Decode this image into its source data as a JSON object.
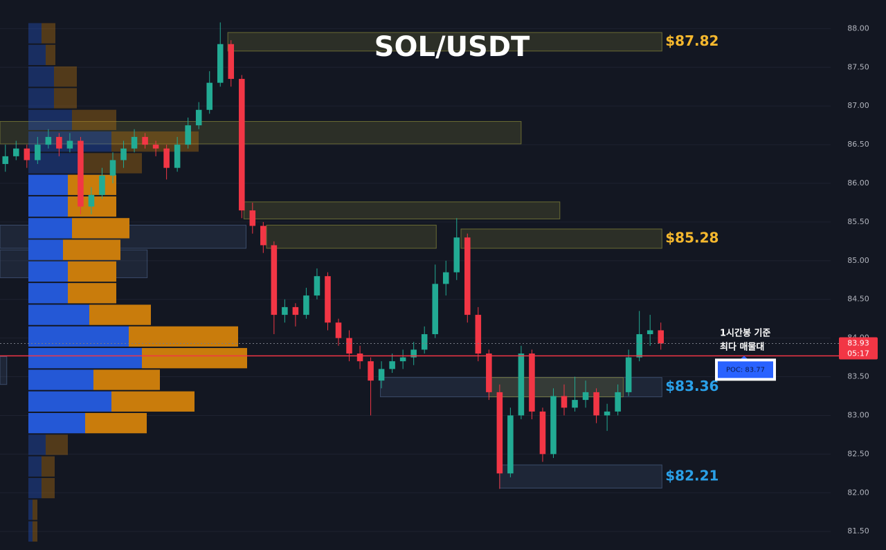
{
  "chart_data": {
    "type": "candlestick",
    "title": "SOL/USDT",
    "up_color": "#22ab94",
    "down_color": "#f23645",
    "ylim": [
      81.26,
      88.37
    ],
    "xlim": [
      -0.5,
      76.8
    ],
    "yticks": [
      {
        "value": 81.5,
        "label": "81.50"
      },
      {
        "value": 82,
        "label": "82.00"
      },
      {
        "value": 82.5,
        "label": "82.50"
      },
      {
        "value": 83,
        "label": "83.00"
      },
      {
        "value": 83.5,
        "label": "83.50"
      },
      {
        "value": 84,
        "label": "84.00"
      },
      {
        "value": 84.5,
        "label": "84.50"
      },
      {
        "value": 85,
        "label": "85.00"
      },
      {
        "value": 85.5,
        "label": "85.50"
      },
      {
        "value": 86,
        "label": "86.00"
      },
      {
        "value": 86.5,
        "label": "86.50"
      },
      {
        "value": 87,
        "label": "87.00"
      },
      {
        "value": 87.5,
        "label": "87.50"
      },
      {
        "value": 88,
        "label": "88.00"
      }
    ],
    "ohlc": [
      [
        86.25,
        86.5,
        86.15,
        86.35
      ],
      [
        86.35,
        86.55,
        86.3,
        86.45
      ],
      [
        86.45,
        86.5,
        86.2,
        86.3
      ],
      [
        86.3,
        86.6,
        86.25,
        86.5
      ],
      [
        86.5,
        86.7,
        86.45,
        86.6
      ],
      [
        86.6,
        86.65,
        86.35,
        86.45
      ],
      [
        86.45,
        86.65,
        86.4,
        86.55
      ],
      [
        86.55,
        86.6,
        85.6,
        85.7
      ],
      [
        85.7,
        85.95,
        85.6,
        85.85
      ],
      [
        85.85,
        86.2,
        85.8,
        86.1
      ],
      [
        86.1,
        86.4,
        86.0,
        86.3
      ],
      [
        86.3,
        86.55,
        86.2,
        86.45
      ],
      [
        86.45,
        86.7,
        86.4,
        86.6
      ],
      [
        86.6,
        86.65,
        86.45,
        86.5
      ],
      [
        86.5,
        86.55,
        86.35,
        86.45
      ],
      [
        86.45,
        86.5,
        86.05,
        86.2
      ],
      [
        86.2,
        86.6,
        86.15,
        86.5
      ],
      [
        86.5,
        86.85,
        86.45,
        86.75
      ],
      [
        86.75,
        87.05,
        86.7,
        86.95
      ],
      [
        86.95,
        87.45,
        86.9,
        87.3
      ],
      [
        87.3,
        88.08,
        87.25,
        87.8
      ],
      [
        87.8,
        87.85,
        87.25,
        87.35
      ],
      [
        87.35,
        87.4,
        85.55,
        85.65
      ],
      [
        85.65,
        85.75,
        85.35,
        85.45
      ],
      [
        85.45,
        85.5,
        85.1,
        85.2
      ],
      [
        85.2,
        85.25,
        84.05,
        84.3
      ],
      [
        84.3,
        84.5,
        84.2,
        84.4
      ],
      [
        84.4,
        84.45,
        84.15,
        84.3
      ],
      [
        84.3,
        84.65,
        84.25,
        84.55
      ],
      [
        84.55,
        84.9,
        84.5,
        84.8
      ],
      [
        84.8,
        84.85,
        84.1,
        84.2
      ],
      [
        84.2,
        84.25,
        83.9,
        84.0
      ],
      [
        84.0,
        84.1,
        83.7,
        83.8
      ],
      [
        83.8,
        83.9,
        83.6,
        83.7
      ],
      [
        83.7,
        83.75,
        83.0,
        83.45
      ],
      [
        83.45,
        83.7,
        83.35,
        83.6
      ],
      [
        83.6,
        83.8,
        83.55,
        83.7
      ],
      [
        83.7,
        83.85,
        83.6,
        83.75
      ],
      [
        83.75,
        83.95,
        83.65,
        83.85
      ],
      [
        83.85,
        84.15,
        83.8,
        84.05
      ],
      [
        84.05,
        84.95,
        84.0,
        84.7
      ],
      [
        84.7,
        85.0,
        84.55,
        84.85
      ],
      [
        84.85,
        85.55,
        84.75,
        85.3
      ],
      [
        85.3,
        85.35,
        84.2,
        84.3
      ],
      [
        84.3,
        84.4,
        83.7,
        83.8
      ],
      [
        83.8,
        83.85,
        83.2,
        83.3
      ],
      [
        83.3,
        83.4,
        82.05,
        82.25
      ],
      [
        82.25,
        83.1,
        82.2,
        83.0
      ],
      [
        83.0,
        83.9,
        82.95,
        83.8
      ],
      [
        83.8,
        83.85,
        82.95,
        83.05
      ],
      [
        83.05,
        83.1,
        82.4,
        82.5
      ],
      [
        82.5,
        83.35,
        82.45,
        83.25
      ],
      [
        83.25,
        83.4,
        83.0,
        83.1
      ],
      [
        83.1,
        83.5,
        83.05,
        83.2
      ],
      [
        83.2,
        83.45,
        83.1,
        83.3
      ],
      [
        83.3,
        83.35,
        82.9,
        83.0
      ],
      [
        83.0,
        83.15,
        82.8,
        83.05
      ],
      [
        83.05,
        83.4,
        83.0,
        83.3
      ],
      [
        83.3,
        83.85,
        83.25,
        83.75
      ],
      [
        83.75,
        84.35,
        83.7,
        84.05
      ],
      [
        84.05,
        84.3,
        83.9,
        84.1
      ],
      [
        84.1,
        84.2,
        83.85,
        83.93
      ]
    ],
    "volume_profile": {
      "bins": [
        88.08,
        87.8,
        87.52,
        87.24,
        86.96,
        86.68,
        86.4,
        86.12,
        85.84,
        85.56,
        85.28,
        85.0,
        84.72,
        84.44,
        84.16,
        83.88,
        83.6,
        83.32,
        83.04,
        82.76,
        82.48,
        82.2,
        81.92,
        81.64,
        81.36
      ],
      "buy": [
        19,
        25,
        37,
        37,
        63,
        120,
        76,
        57,
        57,
        63,
        50,
        57,
        57,
        88,
        145,
        164,
        94,
        120,
        82,
        25,
        19,
        19,
        6,
        6
      ],
      "sell": [
        20,
        14,
        33,
        33,
        64,
        126,
        88,
        70,
        70,
        83,
        83,
        70,
        70,
        89,
        158,
        152,
        96,
        120,
        89,
        32,
        19,
        19,
        7,
        7
      ],
      "buy_color": "#2458d6",
      "sell_color": "#c97c0c",
      "highlight": [
        false,
        false,
        false,
        false,
        false,
        false,
        false,
        true,
        true,
        true,
        true,
        true,
        true,
        true,
        true,
        true,
        true,
        true,
        true,
        false,
        false,
        false,
        false,
        false
      ]
    },
    "zones": [
      {
        "low": 87.71,
        "high": 87.95,
        "from": 20.7,
        "to": 61.1,
        "color": "#8a8a3a",
        "label": "$87.82",
        "label_color": "#f5b82e"
      },
      {
        "low": 86.51,
        "high": 86.8,
        "from": -0.5,
        "to": 48,
        "color": "#8a8a3a"
      },
      {
        "low": 85.54,
        "high": 85.76,
        "from": 22.2,
        "to": 51.6,
        "color": "#8a8a3a"
      },
      {
        "low": 85.16,
        "high": 85.46,
        "from": 24.3,
        "to": 40.1,
        "color": "#8a8a3a"
      },
      {
        "low": 85.16,
        "high": 85.41,
        "from": 42.4,
        "to": 61.1,
        "color": "#8a8a3a",
        "label": "$85.28",
        "label_color": "#f5b82e"
      },
      {
        "low": 85.16,
        "high": 85.46,
        "from": -0.5,
        "to": 22.4,
        "color": "#4a5f85"
      },
      {
        "low": 84.78,
        "high": 85.14,
        "from": -0.5,
        "to": 13.2,
        "color": "#4a5f85"
      },
      {
        "low": 83.4,
        "high": 83.76,
        "from": -0.5,
        "to": 0.13,
        "color": "#4a5f85"
      },
      {
        "low": 83.24,
        "high": 83.49,
        "from": 34.9,
        "to": 61.1,
        "color": "#4a5f85",
        "label": "$83.36",
        "label_color": "#2aa0e8"
      },
      {
        "low": 83.24,
        "high": 83.49,
        "from": 45,
        "to": 57.5,
        "color": "#8a8a3a"
      },
      {
        "low": 82.06,
        "high": 82.36,
        "from": 46,
        "to": 61.1,
        "color": "#4a5f85",
        "label": "$82.21",
        "label_color": "#2aa0e8"
      }
    ],
    "poc": {
      "value": 83.77,
      "label": "POC: 83.77",
      "color": "#f23645"
    },
    "annotation": [
      "1시간봉 기준",
      "최다 매물대"
    ],
    "last_price": {
      "value": 83.93,
      "countdown": "05:17"
    }
  }
}
